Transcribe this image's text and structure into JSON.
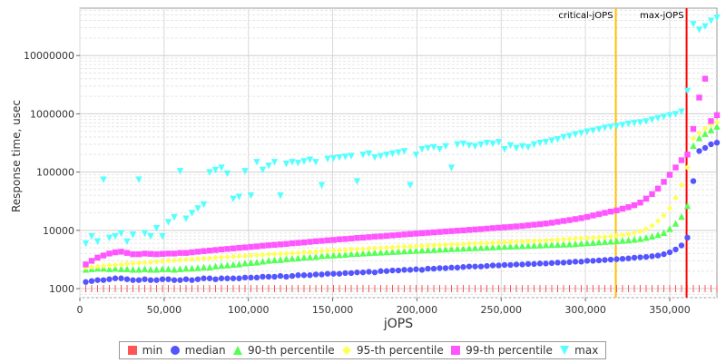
{
  "chart_data": {
    "type": "scatter",
    "title": "",
    "xlabel": "jOPS",
    "ylabel": "Response time, usec",
    "xlim": [
      0,
      378000
    ],
    "ylim": [
      700,
      65000000
    ],
    "yscale": "log",
    "x_ticks": [
      {
        "value": 0,
        "label": "0"
      },
      {
        "value": 50000,
        "label": "50,000"
      },
      {
        "value": 100000,
        "label": "100,000"
      },
      {
        "value": 150000,
        "label": "150,000"
      },
      {
        "value": 200000,
        "label": "200,000"
      },
      {
        "value": 250000,
        "label": "250,000"
      },
      {
        "value": 300000,
        "label": "300,000"
      },
      {
        "value": 350000,
        "label": "350,000"
      }
    ],
    "y_ticks": [
      {
        "value": 1000,
        "label": "1000"
      },
      {
        "value": 10000,
        "label": "10000"
      },
      {
        "value": 100000,
        "label": "100000"
      },
      {
        "value": 1000000,
        "label": "1000000"
      },
      {
        "value": 10000000,
        "label": "10000000"
      }
    ],
    "grid": true,
    "legend_position": "bottom",
    "markers": [
      {
        "label": "critical-jOPS",
        "x": 318000,
        "color": "#ffc000"
      },
      {
        "label": "max-jOPS",
        "x": 360000,
        "color": "#ff0000"
      }
    ],
    "x": [
      3500,
      7000,
      10500,
      14000,
      17500,
      21000,
      24500,
      28000,
      31500,
      35000,
      38500,
      42000,
      45500,
      49000,
      52500,
      56000,
      59500,
      63000,
      66500,
      70000,
      73500,
      77000,
      80500,
      84000,
      87500,
      91000,
      94500,
      98000,
      101500,
      105000,
      108500,
      112000,
      115500,
      119000,
      122500,
      126000,
      129500,
      133000,
      136500,
      140000,
      143500,
      147000,
      150500,
      154000,
      157500,
      161000,
      164500,
      168000,
      171500,
      175000,
      178500,
      182000,
      185500,
      189000,
      192500,
      196000,
      199500,
      203000,
      206500,
      210000,
      213500,
      217000,
      220500,
      224000,
      227500,
      231000,
      234500,
      238000,
      241500,
      245000,
      248500,
      252000,
      255500,
      259000,
      262500,
      266000,
      269500,
      273000,
      276500,
      280000,
      283500,
      287000,
      290500,
      294000,
      297500,
      301000,
      304500,
      308000,
      311500,
      315000,
      318500,
      322000,
      325500,
      329000,
      332500,
      336000,
      339500,
      343000,
      346500,
      350000,
      353500,
      357000,
      360500,
      364000,
      367500,
      371000,
      374500,
      378000
    ],
    "series": [
      {
        "name": "min",
        "color": "#ff5555",
        "shape": "square",
        "values": [
          1000,
          1000,
          1000,
          1000,
          1000,
          1000,
          1000,
          1000,
          1000,
          1000,
          1000,
          1000,
          1000,
          1000,
          1000,
          1000,
          1000,
          1000,
          1000,
          1000,
          1000,
          1000,
          1000,
          1000,
          1000,
          1000,
          1000,
          1000,
          1000,
          1000,
          1000,
          1000,
          1000,
          1000,
          1000,
          1000,
          1000,
          1000,
          1000,
          1000,
          1000,
          1000,
          1000,
          1000,
          1000,
          1000,
          1000,
          1000,
          1000,
          1000,
          1000,
          1000,
          1000,
          1000,
          1000,
          1000,
          1000,
          1000,
          1000,
          1000,
          1000,
          1000,
          1000,
          1000,
          1000,
          1000,
          1000,
          1000,
          1000,
          1000,
          1000,
          1000,
          1000,
          1000,
          1000,
          1000,
          1000,
          1000,
          1000,
          1000,
          1000,
          1000,
          1000,
          1000,
          1000,
          1000,
          1000,
          1000,
          1000,
          1000,
          1000,
          1000,
          1000,
          1000,
          1000,
          1000,
          1000,
          1000,
          1000,
          1000,
          1000,
          1000,
          1000,
          1000,
          1000,
          1000,
          1000,
          1000
        ]
      },
      {
        "name": "median",
        "color": "#5555ff",
        "shape": "circle",
        "values": [
          1300,
          1350,
          1400,
          1400,
          1450,
          1500,
          1500,
          1450,
          1400,
          1400,
          1450,
          1400,
          1400,
          1450,
          1450,
          1400,
          1400,
          1450,
          1400,
          1450,
          1500,
          1500,
          1450,
          1500,
          1500,
          1500,
          1500,
          1550,
          1550,
          1550,
          1600,
          1600,
          1600,
          1650,
          1600,
          1650,
          1700,
          1700,
          1700,
          1750,
          1750,
          1800,
          1800,
          1800,
          1850,
          1850,
          1900,
          1900,
          1950,
          1900,
          2000,
          2000,
          2050,
          2050,
          2100,
          2100,
          2150,
          2100,
          2200,
          2200,
          2250,
          2250,
          2300,
          2300,
          2350,
          2400,
          2400,
          2400,
          2450,
          2500,
          2500,
          2550,
          2550,
          2600,
          2600,
          2650,
          2650,
          2700,
          2700,
          2750,
          2800,
          2800,
          2850,
          2900,
          2900,
          3000,
          3000,
          3050,
          3100,
          3150,
          3200,
          3250,
          3300,
          3400,
          3450,
          3500,
          3600,
          3700,
          3900,
          4200,
          4700,
          5500,
          7500,
          70000,
          230000,
          260000,
          300000,
          320000
        ]
      },
      {
        "name": "90-th percentile",
        "color": "#55ff55",
        "shape": "triangle-up",
        "values": [
          2100,
          2150,
          2200,
          2200,
          2150,
          2200,
          2150,
          2150,
          2100,
          2100,
          2150,
          2100,
          2100,
          2150,
          2150,
          2100,
          2150,
          2200,
          2200,
          2250,
          2300,
          2300,
          2400,
          2450,
          2500,
          2550,
          2600,
          2700,
          2750,
          2800,
          2900,
          3000,
          3050,
          3100,
          3200,
          3250,
          3300,
          3400,
          3450,
          3500,
          3600,
          3650,
          3700,
          3750,
          3800,
          3900,
          3950,
          4000,
          4050,
          4100,
          4150,
          4200,
          4250,
          4300,
          4350,
          4400,
          4450,
          4500,
          4550,
          4600,
          4650,
          4700,
          4750,
          4800,
          4850,
          4900,
          4950,
          5000,
          5050,
          5100,
          5150,
          5200,
          5250,
          5300,
          5350,
          5400,
          5450,
          5500,
          5550,
          5600,
          5650,
          5700,
          5750,
          5800,
          5900,
          6000,
          6100,
          6200,
          6300,
          6400,
          6500,
          6600,
          6700,
          6900,
          7100,
          7400,
          7800,
          8300,
          9000,
          10500,
          13000,
          17000,
          26000,
          280000,
          380000,
          450000,
          520000,
          600000
        ]
      },
      {
        "name": "95-th percentile",
        "color": "#ffff55",
        "shape": "diamond",
        "values": [
          2300,
          2350,
          2400,
          2450,
          2500,
          2550,
          2600,
          2650,
          2700,
          2750,
          2800,
          2850,
          2900,
          2950,
          3000,
          3050,
          3100,
          3150,
          3200,
          3250,
          3300,
          3350,
          3400,
          3450,
          3500,
          3550,
          3600,
          3650,
          3700,
          3750,
          3800,
          3850,
          3900,
          3950,
          4000,
          4050,
          4100,
          4200,
          4250,
          4300,
          4400,
          4450,
          4500,
          4550,
          4600,
          4700,
          4750,
          4800,
          4900,
          4950,
          5000,
          5050,
          5100,
          5200,
          5250,
          5300,
          5350,
          5400,
          5500,
          5550,
          5600,
          5650,
          5700,
          5750,
          5800,
          5900,
          5950,
          6000,
          6050,
          6100,
          6200,
          6250,
          6300,
          6400,
          6450,
          6500,
          6600,
          6650,
          6700,
          6800,
          6900,
          7000,
          7100,
          7200,
          7300,
          7400,
          7500,
          7600,
          7700,
          7900,
          8100,
          8300,
          8600,
          9000,
          9600,
          10500,
          12000,
          14500,
          18000,
          24000,
          36000,
          60000,
          120000,
          380000,
          470000,
          560000,
          650000,
          720000
        ]
      },
      {
        "name": "99-th percentile",
        "color": "#ff55ff",
        "shape": "square",
        "values": [
          2600,
          3000,
          3400,
          3700,
          4000,
          4200,
          4300,
          4100,
          3900,
          3900,
          4000,
          3950,
          3900,
          3950,
          4000,
          4000,
          4100,
          4100,
          4200,
          4300,
          4400,
          4500,
          4600,
          4700,
          4800,
          4900,
          5000,
          5100,
          5200,
          5300,
          5450,
          5550,
          5650,
          5750,
          5850,
          6000,
          6100,
          6200,
          6350,
          6500,
          6600,
          6750,
          6850,
          7000,
          7100,
          7250,
          7400,
          7500,
          7650,
          7800,
          7900,
          8050,
          8200,
          8350,
          8500,
          8650,
          8800,
          8950,
          9100,
          9250,
          9400,
          9550,
          9700,
          9850,
          10000,
          10200,
          10350,
          10500,
          10700,
          10900,
          11100,
          11300,
          11500,
          11700,
          11900,
          12200,
          12500,
          12800,
          13100,
          13500,
          14000,
          14500,
          15000,
          15600,
          16200,
          17000,
          18000,
          19000,
          20000,
          21000,
          22000,
          23500,
          25000,
          27000,
          30000,
          35000,
          42000,
          52000,
          68000,
          90000,
          120000,
          160000,
          200000,
          550000,
          1900000,
          4000000,
          750000,
          950000
        ]
      },
      {
        "name": "max",
        "color": "#55ffff",
        "shape": "triangle-down",
        "values": [
          6000,
          8000,
          6500,
          75000,
          7500,
          8000,
          9000,
          6500,
          8500,
          75000,
          9000,
          8000,
          11000,
          8000,
          14000,
          17000,
          105000,
          16000,
          20000,
          24000,
          28000,
          100000,
          110000,
          120000,
          95000,
          35000,
          38000,
          105000,
          40000,
          150000,
          110000,
          130000,
          150000,
          40000,
          140000,
          150000,
          145000,
          155000,
          165000,
          150000,
          60000,
          170000,
          175000,
          180000,
          185000,
          190000,
          70000,
          200000,
          210000,
          180000,
          190000,
          200000,
          210000,
          220000,
          230000,
          60000,
          200000,
          250000,
          260000,
          270000,
          250000,
          280000,
          120000,
          300000,
          310000,
          290000,
          280000,
          300000,
          320000,
          310000,
          330000,
          250000,
          290000,
          260000,
          280000,
          270000,
          300000,
          320000,
          330000,
          350000,
          370000,
          400000,
          420000,
          450000,
          470000,
          500000,
          520000,
          550000,
          580000,
          600000,
          620000,
          650000,
          680000,
          700000,
          720000,
          750000,
          800000,
          850000,
          900000,
          950000,
          1000000,
          1100000,
          2500000,
          35000000,
          28000000,
          32000000,
          40000000,
          45000000
        ]
      }
    ]
  }
}
